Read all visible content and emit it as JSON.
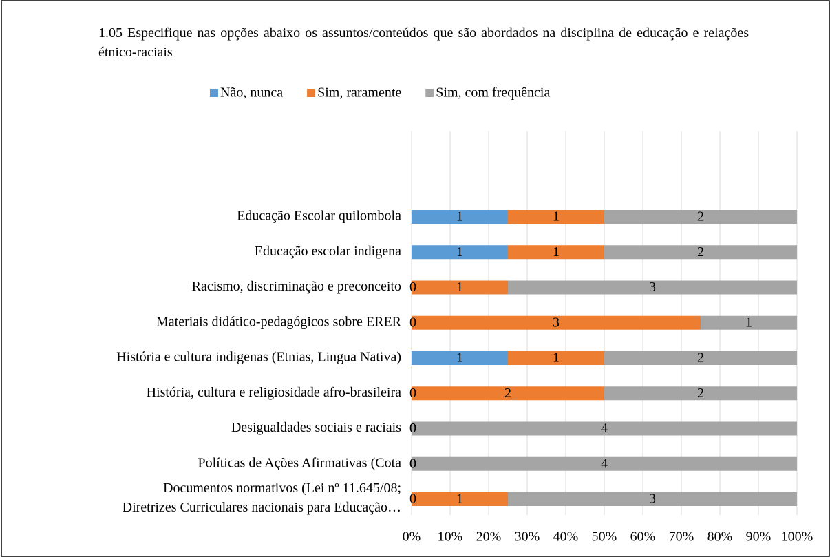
{
  "chart_data": {
    "type": "bar",
    "orientation": "horizontal",
    "stacking": "percent",
    "title": "1.05 Especifique nas opções abaixo os assuntos/conteúdos que são abordados na disciplina de educação e relações étnico-raciais",
    "categories": [
      "Educação Escolar quilombola",
      "Educação escolar indigena",
      "Racismo, discriminação e preconceito",
      "Materiais didático-pedagógicos sobre ERER",
      "História e cultura indigenas (Etnias, Lingua Nativa)",
      "História, cultura e religiosidade afro-brasileira",
      "Desigualdades sociais e raciais",
      "Políticas de Ações Afirmativas (Cota",
      "Documentos normativos (Lei nº 11.645/08;\nDiretrizes Curriculares nacionais para Educação…"
    ],
    "series": [
      {
        "name": "Não, nunca",
        "color": "#5b9bd5",
        "values": [
          1,
          1,
          0,
          0,
          1,
          0,
          0,
          0,
          0
        ]
      },
      {
        "name": "Sim, raramente",
        "color": "#ed7d31",
        "values": [
          1,
          1,
          1,
          3,
          1,
          2,
          0,
          0,
          1
        ]
      },
      {
        "name": "Sim, com frequência",
        "color": "#a5a5a5",
        "values": [
          2,
          2,
          3,
          1,
          2,
          2,
          4,
          4,
          3
        ]
      }
    ],
    "xlim": [
      0,
      100
    ],
    "xticks": [
      {
        "value": 0,
        "label": "0%"
      },
      {
        "value": 10,
        "label": "10%"
      },
      {
        "value": 20,
        "label": "20%"
      },
      {
        "value": 30,
        "label": "30%"
      },
      {
        "value": 40,
        "label": "40%"
      },
      {
        "value": 50,
        "label": "50%"
      },
      {
        "value": 60,
        "label": "60%"
      },
      {
        "value": 70,
        "label": "70%"
      },
      {
        "value": 80,
        "label": "80%"
      },
      {
        "value": 90,
        "label": "90%"
      },
      {
        "value": 100,
        "label": "100%"
      }
    ],
    "grid": true,
    "legend": "top"
  }
}
